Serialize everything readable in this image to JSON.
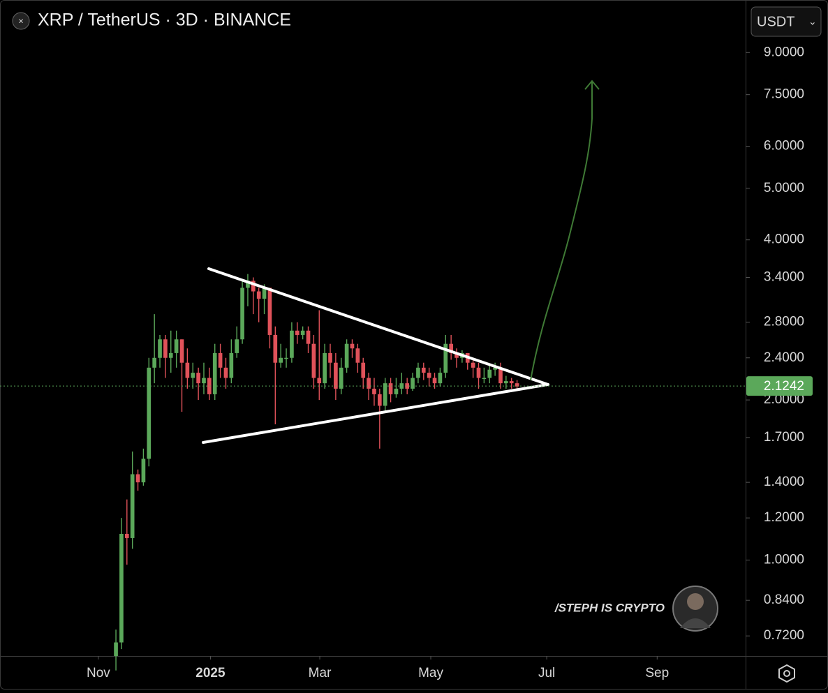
{
  "chart_data": {
    "type": "candlestick",
    "title": "XRP / TetherUS · 3D · BINANCE",
    "currency": "USDT",
    "watermark": "/STEPH IS CRYPTO",
    "up_color": "#5ba85a",
    "down_color": "#e0525a",
    "log_scale": true,
    "open": [
      0.66,
      0.7,
      1.12,
      1.1,
      1.45,
      1.4,
      1.55,
      2.3,
      2.4,
      2.6,
      2.4,
      2.45,
      2.6,
      2.35,
      2.2,
      2.25,
      2.15,
      2.2,
      2.05,
      2.45,
      2.3,
      2.2,
      2.45,
      2.6,
      3.25,
      3.35,
      3.2,
      3.1,
      3.25,
      2.65,
      2.35,
      2.4,
      2.4,
      2.7,
      2.65,
      2.7,
      2.55,
      2.2,
      2.15,
      2.45,
      2.35,
      2.1,
      2.3,
      2.55,
      2.5,
      2.35,
      2.2,
      2.1,
      2.05,
      1.95,
      2.15,
      2.05,
      2.1,
      2.15,
      2.1,
      2.2,
      2.3,
      2.25,
      2.2,
      2.15,
      2.25,
      2.55,
      2.45,
      2.4,
      2.45,
      2.35,
      2.3,
      2.2,
      2.2,
      2.28,
      2.3,
      2.15,
      2.17,
      2.15
    ],
    "high": [
      0.74,
      1.2,
      1.3,
      1.6,
      1.48,
      1.62,
      2.4,
      2.9,
      2.65,
      2.65,
      2.7,
      2.7,
      2.6,
      2.5,
      2.35,
      2.3,
      2.35,
      2.3,
      2.55,
      2.55,
      2.4,
      2.6,
      2.75,
      3.35,
      3.45,
      3.4,
      3.25,
      3.3,
      3.25,
      2.75,
      2.55,
      2.5,
      2.8,
      2.8,
      2.75,
      2.75,
      2.65,
      2.95,
      2.55,
      2.55,
      2.45,
      2.4,
      2.6,
      2.6,
      2.55,
      2.4,
      2.25,
      2.2,
      2.1,
      2.2,
      2.2,
      2.2,
      2.25,
      2.2,
      2.25,
      2.35,
      2.35,
      2.3,
      2.25,
      2.3,
      2.65,
      2.65,
      2.5,
      2.48,
      2.45,
      2.4,
      2.35,
      2.3,
      2.33,
      2.35,
      2.35,
      2.22,
      2.2,
      2.18
    ],
    "low": [
      0.62,
      0.68,
      0.98,
      1.05,
      1.35,
      1.38,
      1.5,
      2.15,
      2.3,
      2.2,
      2.25,
      2.3,
      1.9,
      2.1,
      2.1,
      2.0,
      2.05,
      2.0,
      2.0,
      2.2,
      2.1,
      2.15,
      2.4,
      2.55,
      3.0,
      2.9,
      2.8,
      2.9,
      2.5,
      1.8,
      2.3,
      2.3,
      2.35,
      2.55,
      2.6,
      2.45,
      2.1,
      2.0,
      2.1,
      2.2,
      2.0,
      2.05,
      2.25,
      2.4,
      2.25,
      2.1,
      2.0,
      1.95,
      1.62,
      1.9,
      1.98,
      2.02,
      2.05,
      2.05,
      2.08,
      2.15,
      2.18,
      2.12,
      2.1,
      2.12,
      2.2,
      2.38,
      2.3,
      2.35,
      2.28,
      2.2,
      2.1,
      2.15,
      2.15,
      2.22,
      2.1,
      2.1,
      2.1,
      2.08
    ],
    "close": [
      0.7,
      1.12,
      1.1,
      1.45,
      1.4,
      1.55,
      2.3,
      2.4,
      2.6,
      2.4,
      2.45,
      2.6,
      2.35,
      2.2,
      2.25,
      2.15,
      2.2,
      2.05,
      2.45,
      2.3,
      2.2,
      2.45,
      2.6,
      3.25,
      3.35,
      3.2,
      3.1,
      3.25,
      2.65,
      2.35,
      2.4,
      2.4,
      2.7,
      2.65,
      2.7,
      2.55,
      2.2,
      2.15,
      2.45,
      2.35,
      2.1,
      2.3,
      2.55,
      2.5,
      2.35,
      2.2,
      2.1,
      2.05,
      1.95,
      2.15,
      2.05,
      2.1,
      2.15,
      2.1,
      2.2,
      2.3,
      2.25,
      2.2,
      2.15,
      2.25,
      2.55,
      2.45,
      2.4,
      2.45,
      2.35,
      2.3,
      2.2,
      2.2,
      2.28,
      2.3,
      2.15,
      2.17,
      2.15,
      2.12
    ],
    "last_price": 2.1242,
    "xlim": [
      -21.1,
      114.6
    ],
    "xticks": [
      {
        "value": -3.2,
        "label": "Nov"
      },
      {
        "value": 17.2,
        "label": "2025"
      },
      {
        "value": 37.1,
        "label": "Mar"
      },
      {
        "value": 57.3,
        "label": "May"
      },
      {
        "value": 78.4,
        "label": "Jul"
      },
      {
        "value": 98.5,
        "label": "Sep"
      }
    ],
    "ylim": [
      0.66,
      11.3
    ],
    "yticks": [
      {
        "value": 9,
        "label": "9.0000"
      },
      {
        "value": 7.5,
        "label": "7.5000"
      },
      {
        "value": 6,
        "label": "6.0000"
      },
      {
        "value": 5,
        "label": "5.0000"
      },
      {
        "value": 4,
        "label": "4.0000"
      },
      {
        "value": 3.4,
        "label": "3.4000"
      },
      {
        "value": 2.8,
        "label": "2.8000"
      },
      {
        "value": 2.4,
        "label": "2.4000"
      },
      {
        "value": 2,
        "label": "2.0000"
      },
      {
        "value": 1.7,
        "label": "1.7000"
      },
      {
        "value": 1.4,
        "label": "1.4000"
      },
      {
        "value": 1.2,
        "label": "1.2000"
      },
      {
        "value": 1,
        "label": "1.0000"
      },
      {
        "value": 0.84,
        "label": "0.8400"
      },
      {
        "value": 0.72,
        "label": "0.7200"
      }
    ]
  }
}
